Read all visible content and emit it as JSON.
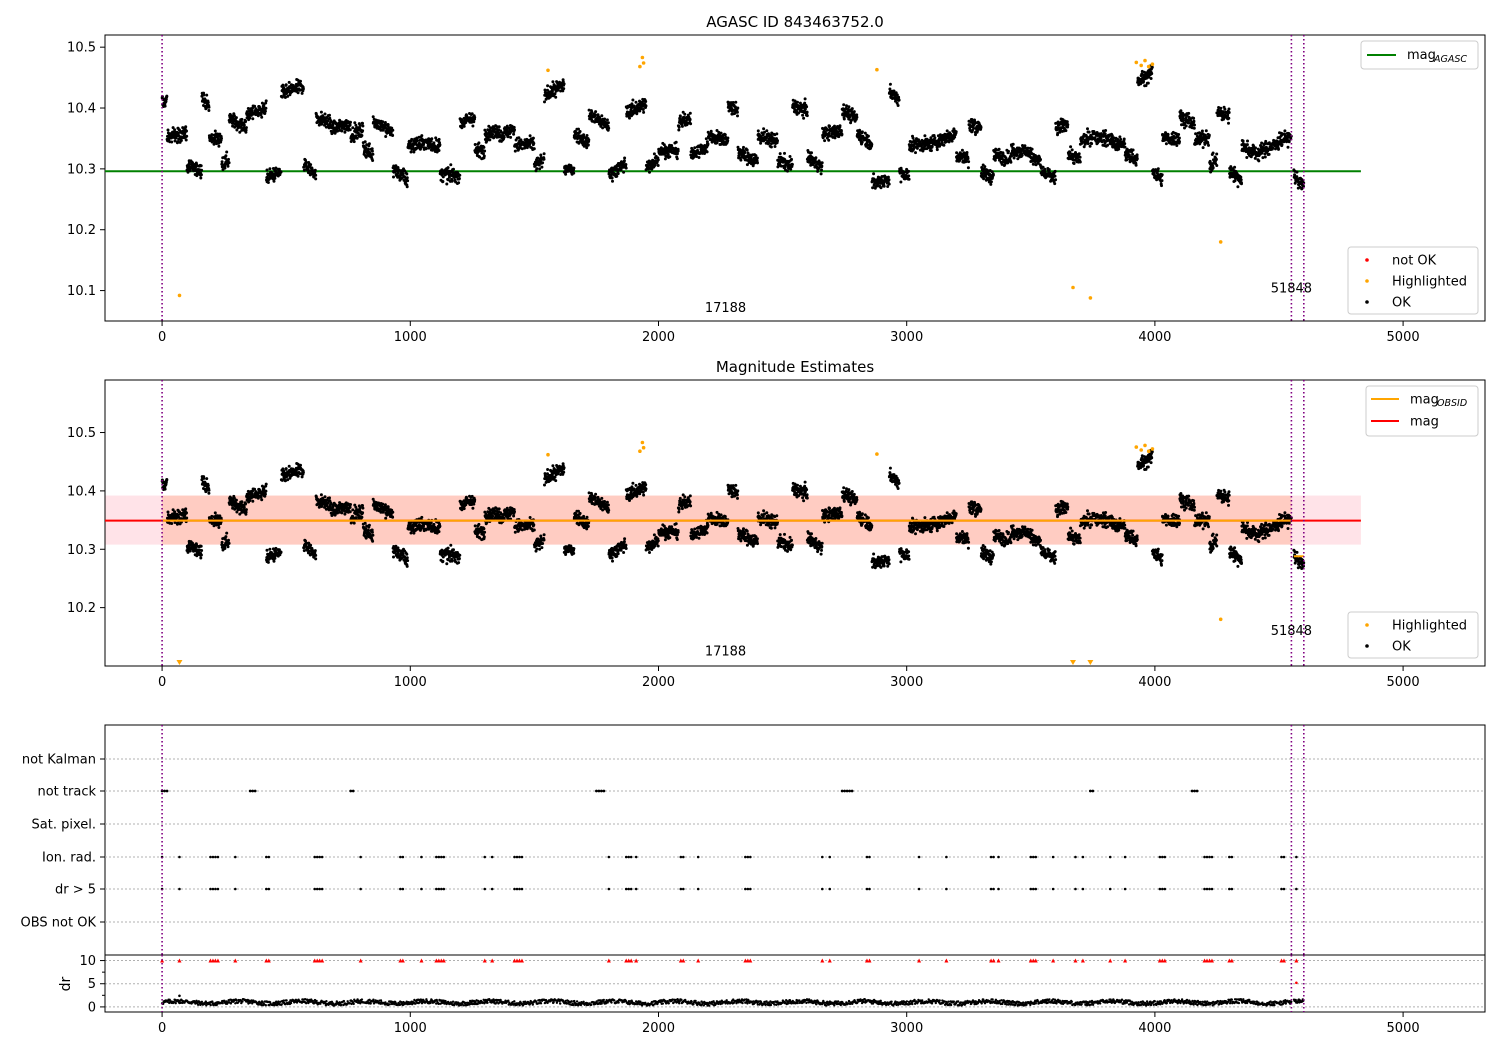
{
  "figure": {
    "panels": [
      {
        "id": "top",
        "title": "AGASC ID 843463752.0",
        "type": "scatter",
        "xlim": [
          -230,
          5330
        ],
        "ylim": [
          10.05,
          10.52
        ],
        "xticks": [
          0,
          1000,
          2000,
          3000,
          4000,
          5000
        ],
        "yticks": [
          10.1,
          10.2,
          10.3,
          10.4,
          10.5
        ],
        "ref_line": {
          "value": 10.296,
          "x_range": [
            -230,
            4830
          ],
          "color": "#008000",
          "label": "mag",
          "label_sub": "AGASC"
        },
        "obsid_lines": [
          0,
          4550,
          4600
        ],
        "obsid_texts": [
          {
            "x": 2270,
            "y": 10.065,
            "text": "17188"
          },
          {
            "x": 4550,
            "y": 10.097,
            "text": "51848"
          }
        ],
        "legend_lines": [
          {
            "label": "mag",
            "sub": "AGASC",
            "color": "#008000"
          }
        ],
        "legend_points": [
          {
            "label": "not OK",
            "color": "#ff0000"
          },
          {
            "label": "Highlighted",
            "color": "#ffa500"
          },
          {
            "label": "OK",
            "color": "#000000"
          }
        ],
        "highlighted_points": [
          [
            70,
            10.092
          ],
          [
            1555,
            10.462
          ],
          [
            1925,
            10.468
          ],
          [
            1935,
            10.483
          ],
          [
            1940,
            10.474
          ],
          [
            2880,
            10.463
          ],
          [
            3670,
            10.105
          ],
          [
            3740,
            10.088
          ],
          [
            3925,
            10.475
          ],
          [
            3945,
            10.47
          ],
          [
            3960,
            10.478
          ],
          [
            3975,
            10.468
          ],
          [
            3990,
            10.472
          ],
          [
            4265,
            10.18
          ]
        ]
      },
      {
        "id": "middle",
        "title": "Magnitude Estimates",
        "type": "scatter",
        "xlim": [
          -230,
          5330
        ],
        "ylim": [
          10.1,
          10.59
        ],
        "xticks": [
          0,
          1000,
          2000,
          3000,
          4000,
          5000
        ],
        "yticks": [
          10.2,
          10.3,
          10.4,
          10.5
        ],
        "band": {
          "low": 10.308,
          "high": 10.392,
          "x_range": [
            -230,
            4830
          ]
        },
        "mag_line": {
          "value": 10.349,
          "x_range": [
            -230,
            4830
          ],
          "color": "#ff0000",
          "label": "mag"
        },
        "obsid_mag_segments": [
          {
            "x0": 0,
            "x1": 4550,
            "y": 10.349
          },
          {
            "x0": 4560,
            "x1": 4600,
            "y": 10.288
          }
        ],
        "obsid_lines": [
          0,
          4550,
          4600
        ],
        "obsid_texts": [
          {
            "x": 2270,
            "y": 10.118,
            "text": "17188"
          },
          {
            "x": 4550,
            "y": 10.153,
            "text": "51848"
          }
        ],
        "legend_lines": [
          {
            "label": "mag",
            "sub": "OBSID",
            "color": "#ffa500"
          },
          {
            "label": "mag",
            "sub": "",
            "color": "#ff0000"
          }
        ],
        "legend_points": [
          {
            "label": "Highlighted",
            "color": "#ffa500"
          },
          {
            "label": "OK",
            "color": "#000000"
          }
        ],
        "highlighted_points": [
          [
            1555,
            10.462
          ],
          [
            1925,
            10.468
          ],
          [
            1935,
            10.483
          ],
          [
            1940,
            10.474
          ],
          [
            2880,
            10.463
          ],
          [
            3925,
            10.475
          ],
          [
            3945,
            10.47
          ],
          [
            3960,
            10.478
          ],
          [
            3975,
            10.468
          ],
          [
            3990,
            10.472
          ],
          [
            4265,
            10.18
          ]
        ],
        "clipped_markers": [
          70,
          3670,
          3740
        ]
      },
      {
        "id": "flags",
        "type": "scatter",
        "xlim": [
          -230,
          5330
        ],
        "categories": [
          "not Kalman",
          "not track",
          "Sat. pixel.",
          "Ion. rad.",
          "dr > 5",
          "OBS not OK"
        ],
        "obsid_lines": [
          0,
          4550,
          4600
        ],
        "not_track_x": [
          0,
          10,
          20,
          355,
          365,
          375,
          760,
          770,
          1750,
          1760,
          1770,
          1780,
          2740,
          2750,
          2760,
          2770,
          2780,
          3740,
          3750,
          4150,
          4160,
          4170
        ],
        "ion_rad_x": [
          0,
          70,
          195,
          205,
          215,
          225,
          295,
          420,
          430,
          615,
          625,
          635,
          645,
          800,
          960,
          970,
          1045,
          1105,
          1115,
          1125,
          1135,
          1300,
          1330,
          1420,
          1430,
          1440,
          1450,
          1800,
          1870,
          1880,
          1890,
          1910,
          2090,
          2100,
          2160,
          2350,
          2360,
          2370,
          2660,
          2690,
          2840,
          2850,
          3050,
          3160,
          3340,
          3350,
          3370,
          3500,
          3510,
          3520,
          3590,
          3680,
          3710,
          3820,
          3880,
          4020,
          4030,
          4040,
          4200,
          4210,
          4220,
          4230,
          4300,
          4310,
          4510,
          4520,
          4570
        ],
        "dr_gt5_x": [
          0,
          70,
          195,
          205,
          215,
          225,
          295,
          420,
          430,
          615,
          625,
          635,
          645,
          800,
          960,
          970,
          1045,
          1105,
          1115,
          1125,
          1135,
          1300,
          1330,
          1420,
          1430,
          1440,
          1450,
          1800,
          1870,
          1880,
          1890,
          1910,
          2090,
          2100,
          2160,
          2350,
          2360,
          2370,
          2660,
          2690,
          2840,
          2850,
          3050,
          3160,
          3340,
          3350,
          3370,
          3500,
          3510,
          3520,
          3590,
          3680,
          3710,
          3820,
          3880,
          4020,
          4030,
          4040,
          4200,
          4210,
          4220,
          4230,
          4300,
          4310,
          4510,
          4520,
          4570
        ]
      },
      {
        "id": "dr",
        "type": "scatter",
        "ylabel": "dr",
        "xlim": [
          -230,
          5330
        ],
        "ylim": [
          -1.1,
          11.2
        ],
        "xticks": [
          0,
          1000,
          2000,
          3000,
          4000,
          5000
        ],
        "yticks": [
          0,
          5,
          10
        ],
        "clip_value": 10,
        "obsid_lines": [
          0,
          4550,
          4600
        ],
        "outlier_points": [
          [
            70,
            2.4
          ],
          [
            4570,
            5.2
          ]
        ]
      }
    ]
  },
  "chart_data": [
    {
      "type": "scatter",
      "title": "AGASC ID 843463752.0",
      "xlabel": "",
      "ylabel": "",
      "xlim": [
        -230,
        5330
      ],
      "ylim": [
        10.05,
        10.52
      ],
      "series": [
        {
          "name": "mag",
          "kind": "line",
          "value": 10.296,
          "color": "#008000"
        },
        {
          "name": "OK",
          "kind": "points",
          "color": "#000000",
          "n_points": "≈4600",
          "range": [
            10.24,
            10.46
          ],
          "x_range": [
            0,
            4600
          ]
        },
        {
          "name": "Highlighted",
          "kind": "points",
          "color": "#ffa500"
        },
        {
          "name": "not OK",
          "kind": "points",
          "color": "#ff0000"
        }
      ],
      "annotations": [
        "17188",
        "51848"
      ],
      "legend": "top-right / bottom-right"
    },
    {
      "type": "scatter",
      "title": "Magnitude Estimates",
      "xlim": [
        -230,
        5330
      ],
      "ylim": [
        10.1,
        10.59
      ],
      "series": [
        {
          "name": "mag",
          "kind": "line",
          "value": 10.349,
          "band": [
            10.308,
            10.392
          ],
          "color": "#ff0000"
        },
        {
          "name": "mag",
          "kind": "segment",
          "color": "#ffa500",
          "values": [
            10.349,
            10.288
          ]
        },
        {
          "name": "Highlighted",
          "kind": "points",
          "color": "#ffa500"
        },
        {
          "name": "OK",
          "kind": "points",
          "color": "#000000"
        }
      ],
      "annotations": [
        "17188",
        "51848"
      ]
    },
    {
      "type": "scatter",
      "categories": [
        "not Kalman",
        "not track",
        "Sat. pixel.",
        "Ion. rad.",
        "dr > 5",
        "OBS not OK"
      ]
    },
    {
      "type": "scatter",
      "ylabel": "dr",
      "xlim": [
        -230,
        5330
      ],
      "ylim": [
        -1.1,
        11.2
      ],
      "yticks": [
        0,
        5,
        10
      ]
    }
  ]
}
